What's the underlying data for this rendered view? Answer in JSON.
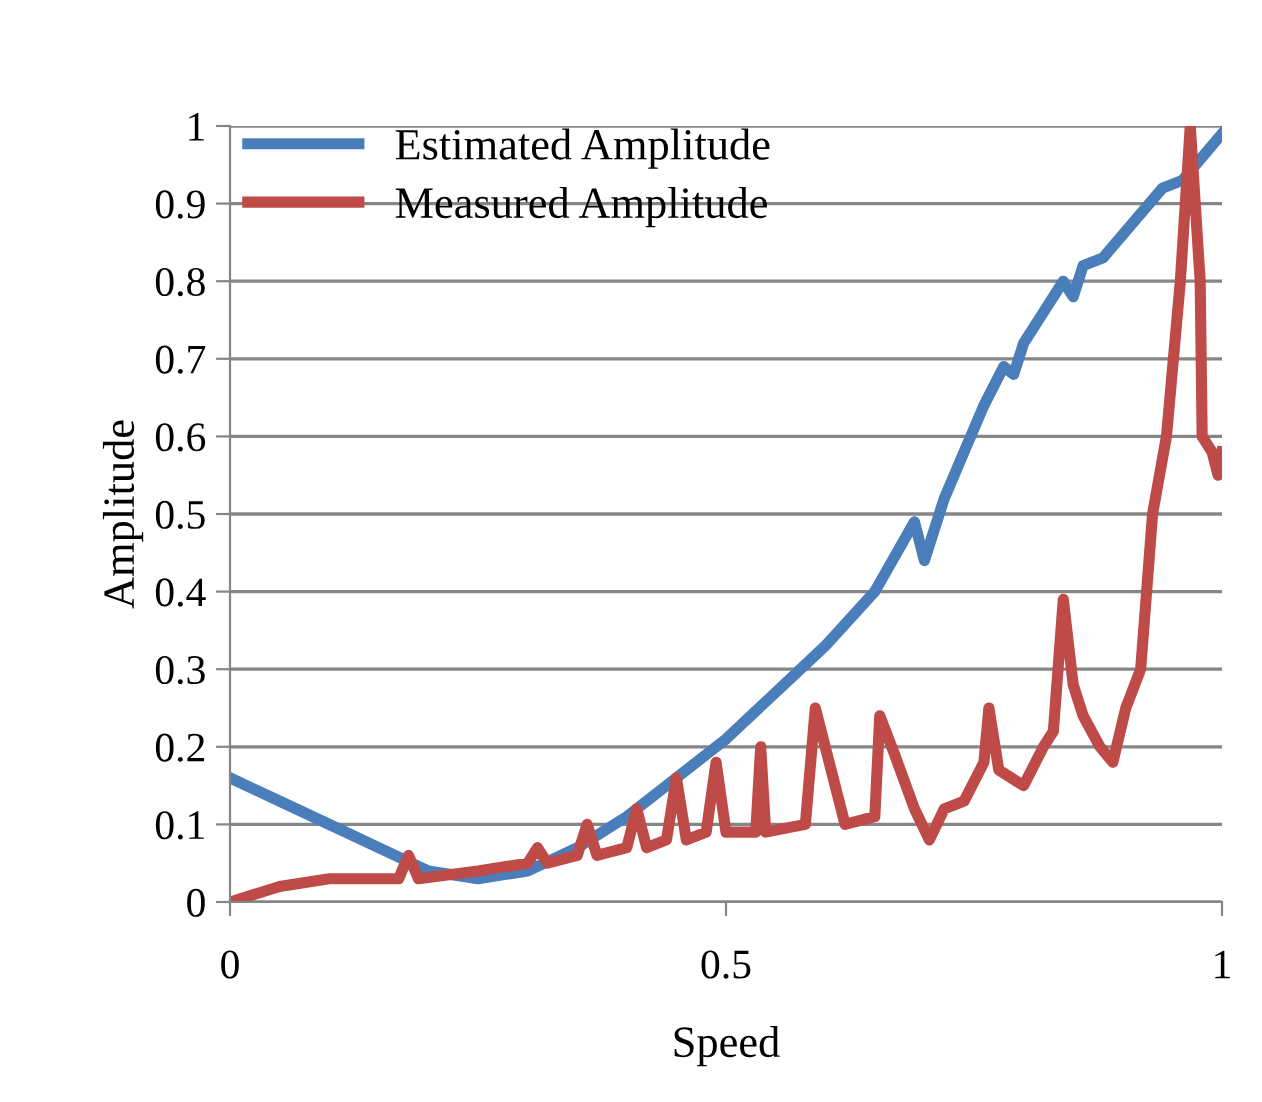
{
  "chart_data": {
    "type": "line",
    "xlabel": "Speed",
    "ylabel": "Amplitude",
    "xlim": [
      0,
      1
    ],
    "xticks": [
      0,
      0.5,
      1
    ],
    "ylim": [
      0,
      1
    ],
    "yticks": [
      0,
      0.1,
      0.2,
      0.3,
      0.4,
      0.5,
      0.6,
      0.7,
      0.8,
      0.9,
      1
    ],
    "grid": "y",
    "legend": "top left",
    "line_style": "solid",
    "marker": "none",
    "series": [
      {
        "name": "Estimated Amplitude",
        "color": "#4a7ebb",
        "x": [
          0,
          0.05,
          0.1,
          0.15,
          0.2,
          0.25,
          0.3,
          0.35,
          0.4,
          0.45,
          0.5,
          0.55,
          0.6,
          0.65,
          0.69,
          0.7,
          0.72,
          0.74,
          0.76,
          0.78,
          0.79,
          0.8,
          0.82,
          0.84,
          0.85,
          0.86,
          0.88,
          0.9,
          0.92,
          0.94,
          0.96,
          0.98,
          1
        ],
        "values": [
          0.16,
          0.13,
          0.1,
          0.07,
          0.04,
          0.03,
          0.04,
          0.07,
          0.11,
          0.16,
          0.21,
          0.27,
          0.33,
          0.4,
          0.49,
          0.44,
          0.52,
          0.58,
          0.64,
          0.69,
          0.68,
          0.72,
          0.76,
          0.8,
          0.78,
          0.82,
          0.83,
          0.86,
          0.89,
          0.92,
          0.93,
          0.96,
          0.99
        ]
      },
      {
        "name": "Measured Amplitude",
        "color": "#be4b48",
        "x": [
          0,
          0.05,
          0.1,
          0.17,
          0.18,
          0.19,
          0.25,
          0.3,
          0.31,
          0.32,
          0.35,
          0.36,
          0.37,
          0.4,
          0.41,
          0.42,
          0.44,
          0.45,
          0.46,
          0.48,
          0.49,
          0.5,
          0.53,
          0.535,
          0.54,
          0.58,
          0.59,
          0.6,
          0.62,
          0.65,
          0.655,
          0.67,
          0.69,
          0.705,
          0.72,
          0.74,
          0.76,
          0.765,
          0.775,
          0.8,
          0.82,
          0.83,
          0.84,
          0.85,
          0.86,
          0.877,
          0.89,
          0.903,
          0.918,
          0.93,
          0.944,
          0.958,
          0.968,
          0.978,
          0.98,
          0.99,
          0.996,
          1
        ],
        "values": [
          0,
          0.02,
          0.03,
          0.03,
          0.06,
          0.03,
          0.04,
          0.05,
          0.07,
          0.05,
          0.06,
          0.1,
          0.06,
          0.07,
          0.12,
          0.07,
          0.08,
          0.16,
          0.08,
          0.09,
          0.18,
          0.09,
          0.09,
          0.2,
          0.09,
          0.1,
          0.25,
          0.2,
          0.1,
          0.11,
          0.24,
          0.19,
          0.12,
          0.08,
          0.12,
          0.13,
          0.18,
          0.25,
          0.17,
          0.15,
          0.2,
          0.22,
          0.39,
          0.28,
          0.24,
          0.2,
          0.18,
          0.25,
          0.3,
          0.5,
          0.6,
          0.8,
          1.0,
          0.8,
          0.6,
          0.58,
          0.55,
          0.58
        ]
      }
    ]
  }
}
